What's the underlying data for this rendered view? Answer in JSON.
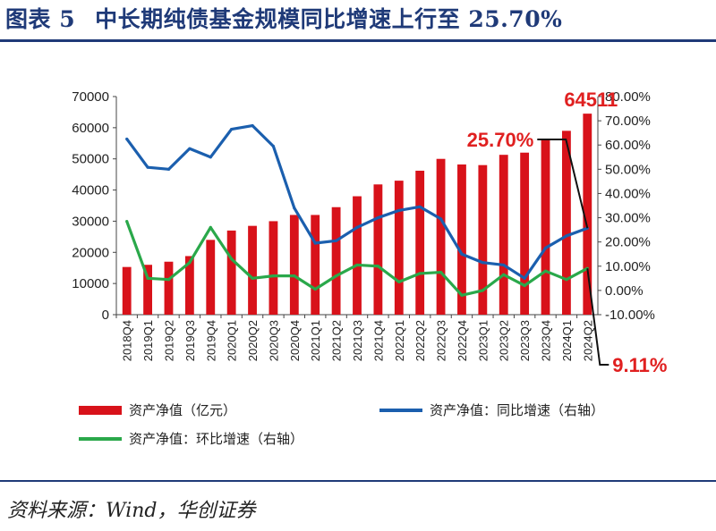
{
  "header": {
    "figure_label": "图表 5",
    "title": "中长期纯债基金规模同比增速上行至 25.70%"
  },
  "source": "资料来源：Wind，华创证券",
  "colors": {
    "bar": "#d8121a",
    "yoy": "#1b5fae",
    "qoq": "#2aa84a",
    "title": "#1f3a78",
    "annotation": "#e02020"
  },
  "chart_data": {
    "type": "bar",
    "categories": [
      "2018Q4",
      "2019Q1",
      "2019Q2",
      "2019Q3",
      "2019Q4",
      "2020Q1",
      "2020Q2",
      "2020Q3",
      "2020Q4",
      "2021Q1",
      "2021Q2",
      "2021Q3",
      "2021Q4",
      "2022Q1",
      "2022Q2",
      "2022Q3",
      "2022Q4",
      "2023Q1",
      "2023Q2",
      "2023Q3",
      "2023Q4",
      "2024Q1",
      "2024Q2"
    ],
    "series": [
      {
        "name": "资产净值（亿元）",
        "kind": "bar",
        "axis": "left",
        "values": [
          15300,
          16000,
          17000,
          18800,
          24000,
          27000,
          28500,
          30000,
          32000,
          32000,
          34500,
          38000,
          41800,
          43000,
          46200,
          50000,
          48200,
          48000,
          51300,
          52000,
          56500,
          59000,
          64511
        ]
      },
      {
        "name": "资产净值：同比增速（右轴）",
        "kind": "line",
        "axis": "right",
        "values": [
          62.5,
          50.8,
          50.0,
          58.5,
          55.0,
          66.5,
          68.0,
          59.5,
          34.0,
          19.5,
          20.5,
          26.0,
          30.0,
          33.0,
          34.5,
          29.5,
          15.0,
          11.5,
          10.5,
          5.0,
          17.5,
          22.5,
          25.7
        ]
      },
      {
        "name": "资产净值：环比增速（右轴）",
        "kind": "line",
        "axis": "right",
        "values": [
          28.5,
          5.0,
          4.5,
          11.5,
          26.0,
          13.0,
          5.0,
          6.0,
          6.0,
          0.5,
          6.0,
          10.5,
          10.0,
          3.5,
          7.0,
          7.5,
          -2.0,
          0.0,
          6.5,
          2.0,
          8.0,
          4.5,
          9.11
        ]
      }
    ],
    "y_left": {
      "min": 0,
      "max": 70000,
      "ticks": [
        "0",
        "10000",
        "20000",
        "30000",
        "40000",
        "50000",
        "60000",
        "70000"
      ]
    },
    "y_right": {
      "min": -10,
      "max": 80,
      "ticks": [
        "-10.00%",
        "0.00%",
        "10.00%",
        "20.00%",
        "30.00%",
        "40.00%",
        "50.00%",
        "60.00%",
        "70.00%",
        "80.00%"
      ]
    },
    "grid": false,
    "legend_position": "bottom",
    "annotations": {
      "last_bar": "64511",
      "yoy_last": "25.70%",
      "qoq_last": "9.11%"
    }
  }
}
